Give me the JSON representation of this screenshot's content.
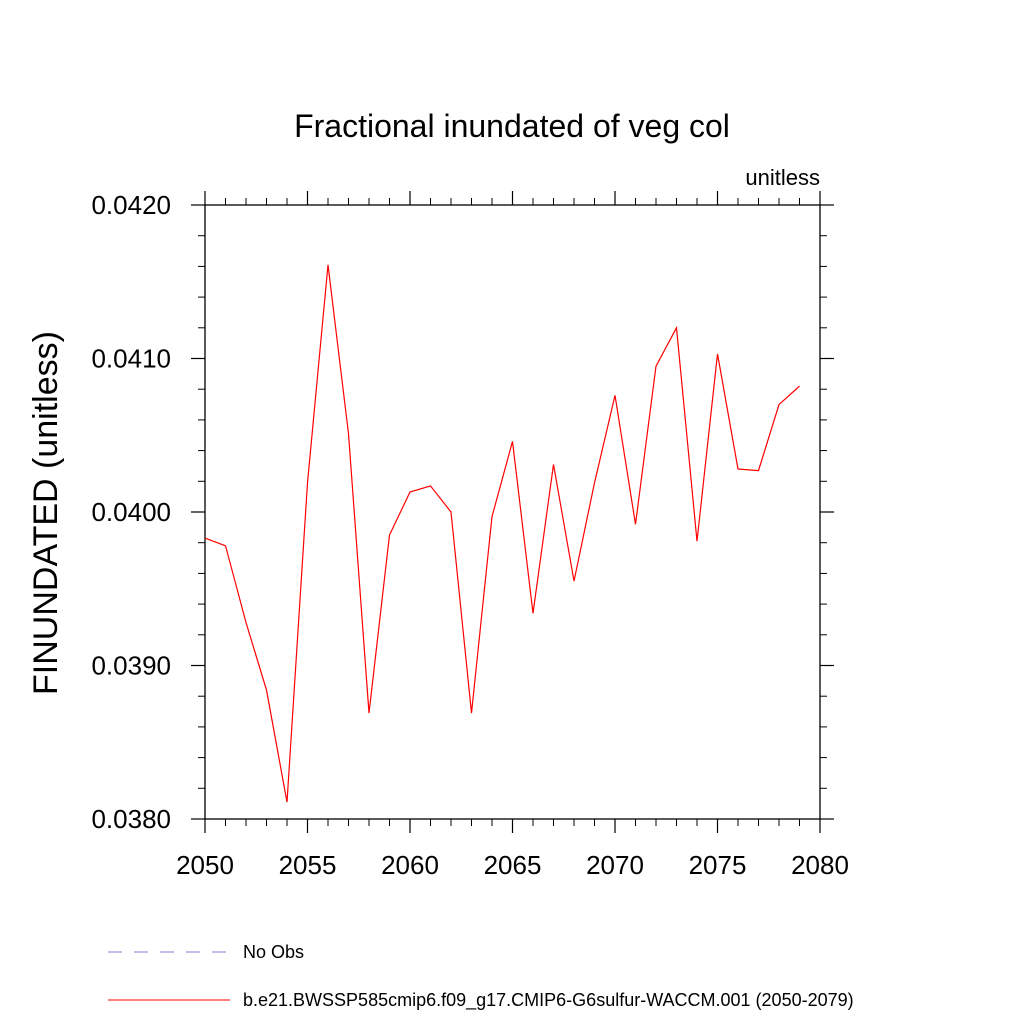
{
  "chart_data": {
    "type": "line",
    "title": "Fractional inundated of veg col",
    "units_label": "unitless",
    "ylabel": "FINUNDATED  (unitless)",
    "xlabel": "",
    "xlim": [
      2050,
      2080
    ],
    "ylim": [
      0.038,
      0.042
    ],
    "x_ticks": [
      2050,
      2055,
      2060,
      2065,
      2070,
      2075,
      2080
    ],
    "x_tick_labels": [
      "2050",
      "2055",
      "2060",
      "2065",
      "2070",
      "2075",
      "2080"
    ],
    "y_ticks": [
      0.038,
      0.039,
      0.04,
      0.041,
      0.042
    ],
    "y_tick_labels": [
      "0.0380",
      "0.0390",
      "0.0400",
      "0.0410",
      "0.0420"
    ],
    "grid": false,
    "legend_position": "bottom",
    "series": [
      {
        "name": "b.e21.BWSSP585cmip6.f09_g17.CMIP6-G6sulfur-WACCM.001 (2050-2079)",
        "color": "#ff0000",
        "line_style": "solid",
        "x": [
          2050,
          2051,
          2052,
          2053,
          2054,
          2055,
          2056,
          2057,
          2058,
          2059,
          2060,
          2061,
          2062,
          2063,
          2064,
          2065,
          2066,
          2067,
          2068,
          2069,
          2070,
          2071,
          2072,
          2073,
          2074,
          2075,
          2076,
          2077,
          2078,
          2079
        ],
        "values": [
          0.03983,
          0.03978,
          0.03928,
          0.03884,
          0.03811,
          0.04019,
          0.04161,
          0.04051,
          0.03869,
          0.03985,
          0.04013,
          0.04017,
          0.04,
          0.03869,
          0.03997,
          0.04046,
          0.03934,
          0.04031,
          0.03955,
          0.04019,
          0.04076,
          0.03992,
          0.04095,
          0.0412,
          0.03981,
          0.04103,
          0.04028,
          0.04027,
          0.0407,
          0.04082
        ]
      },
      {
        "name": "No Obs",
        "color": "#8a7fd0",
        "line_style": "dashed",
        "x": [],
        "values": []
      }
    ],
    "legend": [
      {
        "label": "No Obs",
        "color": "#8a7fd0",
        "line_style": "dashed"
      },
      {
        "label": "b.e21.BWSSP585cmip6.f09_g17.CMIP6-G6sulfur-WACCM.001 (2050-2079)",
        "color": "#ff0000",
        "line_style": "solid"
      }
    ]
  }
}
